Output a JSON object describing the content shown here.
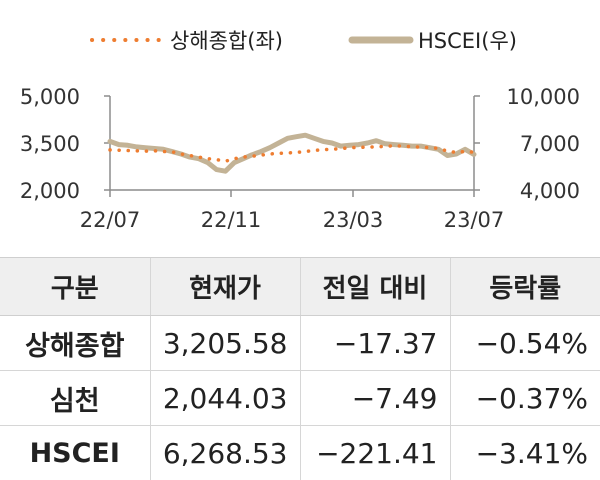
{
  "chart_data": {
    "type": "line",
    "legend": {
      "position": "top-center"
    },
    "x_ticks": [
      "22/07",
      "22/11",
      "23/03",
      "23/07"
    ],
    "y_left": {
      "ticks": [
        "5,000",
        "3,500",
        "2,000"
      ],
      "ylim": [
        2000,
        5000
      ]
    },
    "y_right": {
      "ticks": [
        "10,000",
        "7,000",
        "4,000"
      ],
      "ylim": [
        4000,
        10000
      ]
    },
    "grid": false,
    "series": [
      {
        "name": "상해종합(좌)",
        "axis": "left",
        "style": "dotted",
        "color": "#ee7d31",
        "values": [
          3280,
          3270,
          3260,
          3250,
          3240,
          3250,
          3230,
          3220,
          3150,
          3100,
          3050,
          3000,
          2970,
          2920,
          3000,
          3050,
          3080,
          3110,
          3150,
          3170,
          3180,
          3200,
          3230,
          3260,
          3290,
          3300,
          3320,
          3350,
          3360,
          3370,
          3380,
          3390,
          3410,
          3400,
          3380,
          3370,
          3350,
          3330,
          3240,
          3200,
          3230,
          3205
        ]
      },
      {
        "name": "HSCEI(우)",
        "axis": "right",
        "style": "solid",
        "color": "#c3b396",
        "values": [
          7100,
          6900,
          6850,
          6750,
          6700,
          6650,
          6600,
          6450,
          6300,
          6100,
          6000,
          5750,
          5300,
          5200,
          5750,
          6000,
          6250,
          6450,
          6700,
          7000,
          7300,
          7400,
          7500,
          7300,
          7100,
          7000,
          6800,
          6850,
          6900,
          7000,
          7150,
          6950,
          6900,
          6850,
          6800,
          6800,
          6700,
          6600,
          6200,
          6300,
          6600,
          6270
        ]
      }
    ]
  },
  "table": {
    "headers": [
      "구분",
      "현재가",
      "전일 대비",
      "등락률"
    ],
    "rows": [
      {
        "name": "상해종합",
        "price": "3,205.58",
        "change": "-17.37",
        "rate": "-0.54%"
      },
      {
        "name": "심천",
        "price": "2,044.03",
        "change": "-7.49",
        "rate": "-0.37%"
      },
      {
        "name": "HSCEI",
        "price": "6,268.53",
        "change": "-221.41",
        "rate": "-3.41%"
      }
    ]
  }
}
